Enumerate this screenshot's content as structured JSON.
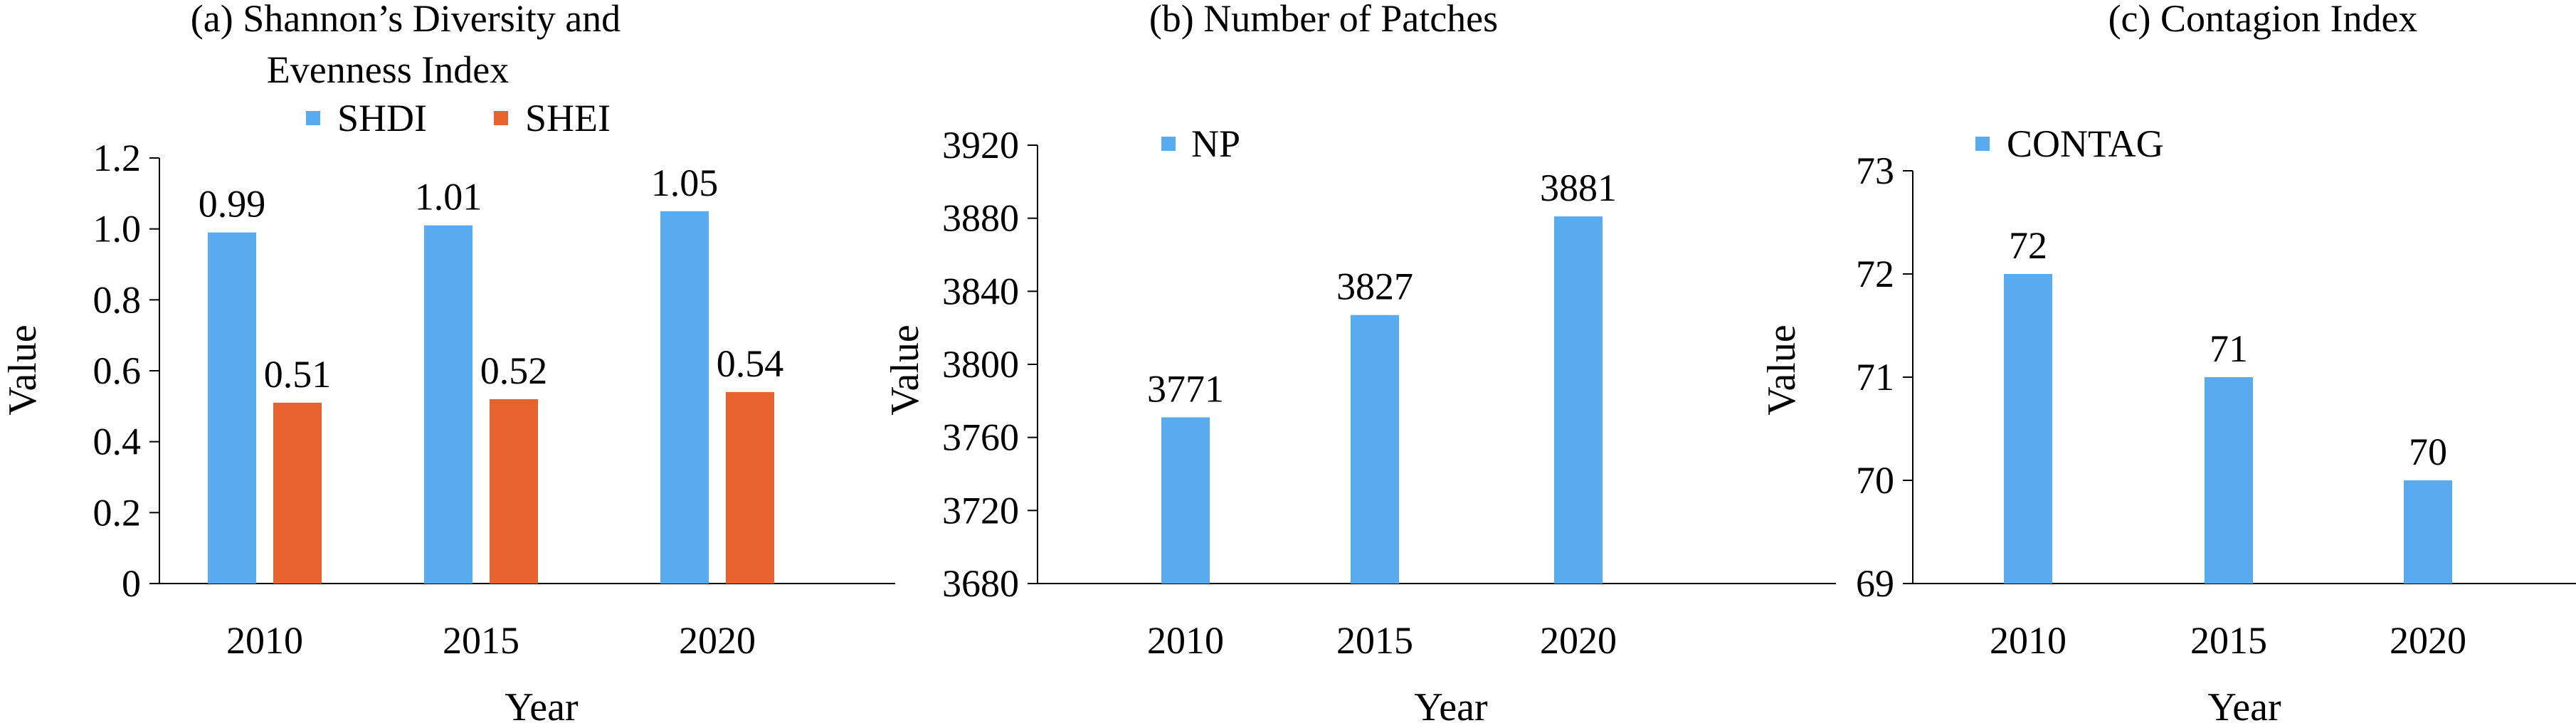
{
  "colors": {
    "blue": "#58ABEE",
    "orange": "#E8622F",
    "axis": "#000000"
  },
  "chart_data": [
    {
      "type": "bar",
      "title_lines": [
        "(a) Shannon’s Diversity and",
        "Evenness  Index"
      ],
      "xlabel": "Year",
      "ylabel": "Value",
      "categories": [
        "2010",
        "2015",
        "2020"
      ],
      "ylim": [
        0,
        1.2
      ],
      "yticks": [
        "0",
        "0.2",
        "0.4",
        "0.6",
        "0.8",
        "1.0",
        "1.2"
      ],
      "legend_position": "top",
      "grid": false,
      "series": [
        {
          "name": "SHDI",
          "color": "#58ABEE",
          "values": [
            0.99,
            1.01,
            1.05
          ],
          "labels": [
            "0.99",
            "1.01",
            "1.05"
          ]
        },
        {
          "name": "SHEI",
          "color": "#E8622F",
          "values": [
            0.51,
            0.52,
            0.54
          ],
          "labels": [
            "0.51",
            "0.52",
            "0.54"
          ]
        }
      ]
    },
    {
      "type": "bar",
      "title_lines": [
        "(b) Number of Patches"
      ],
      "xlabel": "Year",
      "ylabel": "Value",
      "categories": [
        "2010",
        "2015",
        "2020"
      ],
      "ylim": [
        3680,
        3920
      ],
      "yticks": [
        "3680",
        "3720",
        "3760",
        "3800",
        "3840",
        "3880",
        "3920"
      ],
      "legend_position": "top-left",
      "grid": false,
      "series": [
        {
          "name": "NP",
          "color": "#58ABEE",
          "values": [
            3771,
            3827,
            3881
          ],
          "labels": [
            "3771",
            "3827",
            "3881"
          ]
        }
      ]
    },
    {
      "type": "bar",
      "title_lines": [
        "(c) Contagion Index"
      ],
      "xlabel": "Year",
      "ylabel": "Value",
      "categories": [
        "2010",
        "2015",
        "2020"
      ],
      "ylim": [
        69,
        73
      ],
      "yticks": [
        "69",
        "70",
        "71",
        "72",
        "73"
      ],
      "legend_position": "top-left",
      "grid": false,
      "series": [
        {
          "name": "CONTAG",
          "color": "#58ABEE",
          "values": [
            72,
            71,
            70
          ],
          "labels": [
            "72",
            "71",
            "70"
          ]
        }
      ]
    }
  ]
}
